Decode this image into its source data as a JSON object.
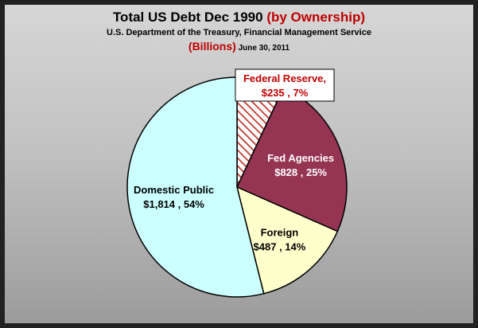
{
  "title": "Total US Debt Dec 1990",
  "title_accent": "(by Ownership)",
  "subtitle": "U.S. Department of the Treasury, Financial Management Service",
  "units": "(Billions)",
  "date": "June 30, 2011",
  "colors": {
    "federal_reserve": "#c0392b",
    "fed_agencies": "#953553",
    "foreign": "#ffffcc",
    "domestic_public": "#ccffff",
    "title_accent": "#c00000"
  },
  "chart_data": {
    "type": "pie",
    "title": "Total US Debt Dec 1990 (by Ownership)",
    "subtitle": "U.S. Department of the Treasury, Financial Management Service",
    "units": "(Billions)",
    "slices": [
      {
        "name": "Federal Reserve,",
        "value": 235,
        "value_label": "$235",
        "percent": 7,
        "percent_label": "7%",
        "pattern": "red-diagonal-hatch"
      },
      {
        "name": "Fed Agencies",
        "value": 828,
        "value_label": "$828",
        "percent": 25,
        "percent_label": "25%"
      },
      {
        "name": "Foreign",
        "value": 487,
        "value_label": "$487",
        "percent": 14,
        "percent_label": "14%"
      },
      {
        "name": "Domestic Public",
        "value": 1814,
        "value_label": "$1,814",
        "percent": 54,
        "percent_label": "54%"
      }
    ]
  }
}
